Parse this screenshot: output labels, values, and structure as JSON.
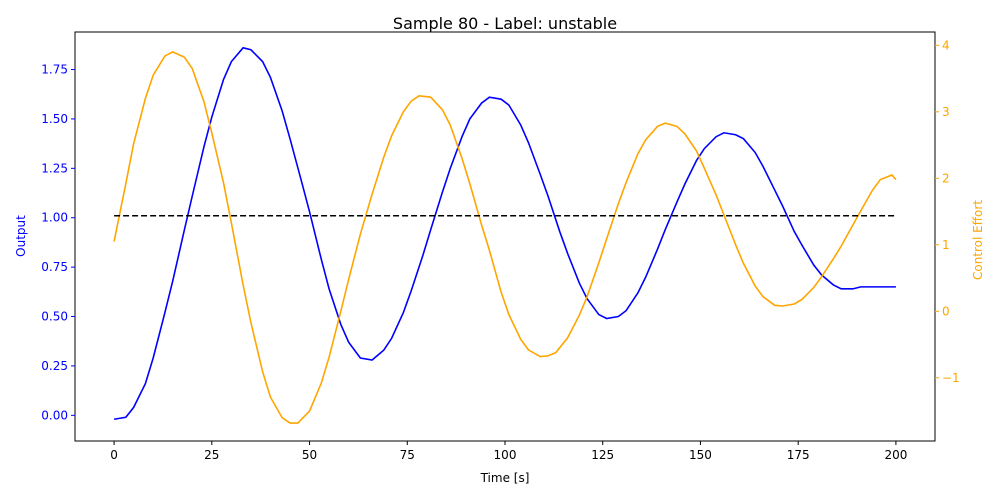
{
  "chart_data": {
    "type": "line",
    "title": "Sample 80 - Label: unstable",
    "xlabel": "Time [s]",
    "ylabel_left": "Output",
    "ylabel_right": "Control Effort",
    "xlim": [
      -10,
      210
    ],
    "ylim_left": [
      -0.13,
      1.94
    ],
    "ylim_right": [
      -1.95,
      4.2
    ],
    "xticks": [
      0,
      25,
      50,
      75,
      100,
      125,
      150,
      175,
      200
    ],
    "yticks_left": [
      0.0,
      0.25,
      0.5,
      0.75,
      1.0,
      1.25,
      1.5,
      1.75
    ],
    "yticks_right": [
      -1,
      0,
      1,
      2,
      3,
      4
    ],
    "grid": false,
    "colors": {
      "output": "#0000ff",
      "control": "#ffa500",
      "setpoint": "#000000",
      "left_axis": "#0000ff",
      "right_axis": "#ffa500"
    },
    "series": [
      {
        "axis": "left",
        "style": "solid",
        "color": "#0000ff",
        "x": [
          0,
          3,
          5,
          8,
          10,
          13,
          15,
          18,
          20,
          23,
          25,
          28,
          30,
          33,
          35,
          38,
          40,
          43,
          45,
          48,
          50,
          53,
          55,
          58,
          60,
          63,
          66,
          69,
          71,
          74,
          76,
          79,
          81,
          84,
          86,
          89,
          91,
          94,
          96,
          99,
          101,
          104,
          106,
          109,
          111,
          114,
          116,
          119,
          121,
          124,
          126,
          129,
          131,
          134,
          136,
          139,
          141,
          144,
          146,
          149,
          151,
          154,
          156,
          159,
          161,
          164,
          166,
          169,
          171,
          174,
          176,
          179,
          181,
          184,
          186,
          189,
          191,
          194,
          196,
          199,
          200
        ],
        "values": [
          -0.02,
          -0.01,
          0.04,
          0.16,
          0.29,
          0.52,
          0.68,
          0.94,
          1.11,
          1.36,
          1.51,
          1.7,
          1.79,
          1.86,
          1.85,
          1.79,
          1.71,
          1.54,
          1.4,
          1.18,
          1.03,
          0.79,
          0.64,
          0.46,
          0.37,
          0.29,
          0.28,
          0.33,
          0.39,
          0.52,
          0.63,
          0.81,
          0.94,
          1.13,
          1.25,
          1.41,
          1.5,
          1.58,
          1.61,
          1.6,
          1.57,
          1.47,
          1.38,
          1.22,
          1.11,
          0.93,
          0.82,
          0.67,
          0.59,
          0.51,
          0.49,
          0.5,
          0.53,
          0.62,
          0.7,
          0.84,
          0.94,
          1.08,
          1.17,
          1.29,
          1.35,
          1.41,
          1.43,
          1.42,
          1.4,
          1.33,
          1.26,
          1.14,
          1.06,
          0.93,
          0.86,
          0.76,
          0.71,
          0.66,
          0.64,
          0.64,
          0.65,
          0.65,
          0.65,
          0.65,
          0.65
        ]
      },
      {
        "axis": "right",
        "style": "solid",
        "color": "#ffa500",
        "x": [
          0,
          3,
          5,
          8,
          10,
          13,
          15,
          18,
          20,
          23,
          25,
          28,
          30,
          33,
          35,
          38,
          40,
          43,
          45,
          47,
          50,
          53,
          55,
          58,
          60,
          63,
          66,
          69,
          71,
          74,
          76,
          78,
          81,
          84,
          86,
          89,
          91,
          94,
          96,
          99,
          101,
          104,
          106,
          109,
          111,
          113,
          116,
          119,
          121,
          124,
          126,
          129,
          131,
          134,
          136,
          139,
          141,
          144,
          146,
          149,
          151,
          154,
          156,
          159,
          161,
          164,
          166,
          169,
          171,
          174,
          176,
          179,
          181,
          184,
          186,
          189,
          191,
          194,
          196,
          199,
          200
        ],
        "values": [
          1.05,
          1.92,
          2.52,
          3.2,
          3.55,
          3.84,
          3.9,
          3.82,
          3.65,
          3.15,
          2.68,
          1.93,
          1.33,
          0.4,
          -0.17,
          -0.91,
          -1.29,
          -1.6,
          -1.68,
          -1.68,
          -1.5,
          -1.08,
          -0.69,
          0.0,
          0.48,
          1.16,
          1.76,
          2.32,
          2.64,
          3.0,
          3.16,
          3.24,
          3.22,
          3.03,
          2.8,
          2.3,
          1.92,
          1.3,
          0.92,
          0.29,
          -0.05,
          -0.42,
          -0.58,
          -0.68,
          -0.67,
          -0.62,
          -0.4,
          -0.06,
          0.22,
          0.73,
          1.09,
          1.62,
          1.94,
          2.37,
          2.58,
          2.78,
          2.83,
          2.78,
          2.67,
          2.41,
          2.15,
          1.75,
          1.45,
          1.0,
          0.72,
          0.38,
          0.22,
          0.09,
          0.08,
          0.11,
          0.18,
          0.36,
          0.52,
          0.79,
          0.98,
          1.3,
          1.51,
          1.82,
          1.98,
          2.05,
          1.98
        ]
      },
      {
        "axis": "left",
        "style": "dashed",
        "color": "#000000",
        "x": [
          0,
          200
        ],
        "values": [
          1.01,
          1.01
        ]
      }
    ]
  }
}
